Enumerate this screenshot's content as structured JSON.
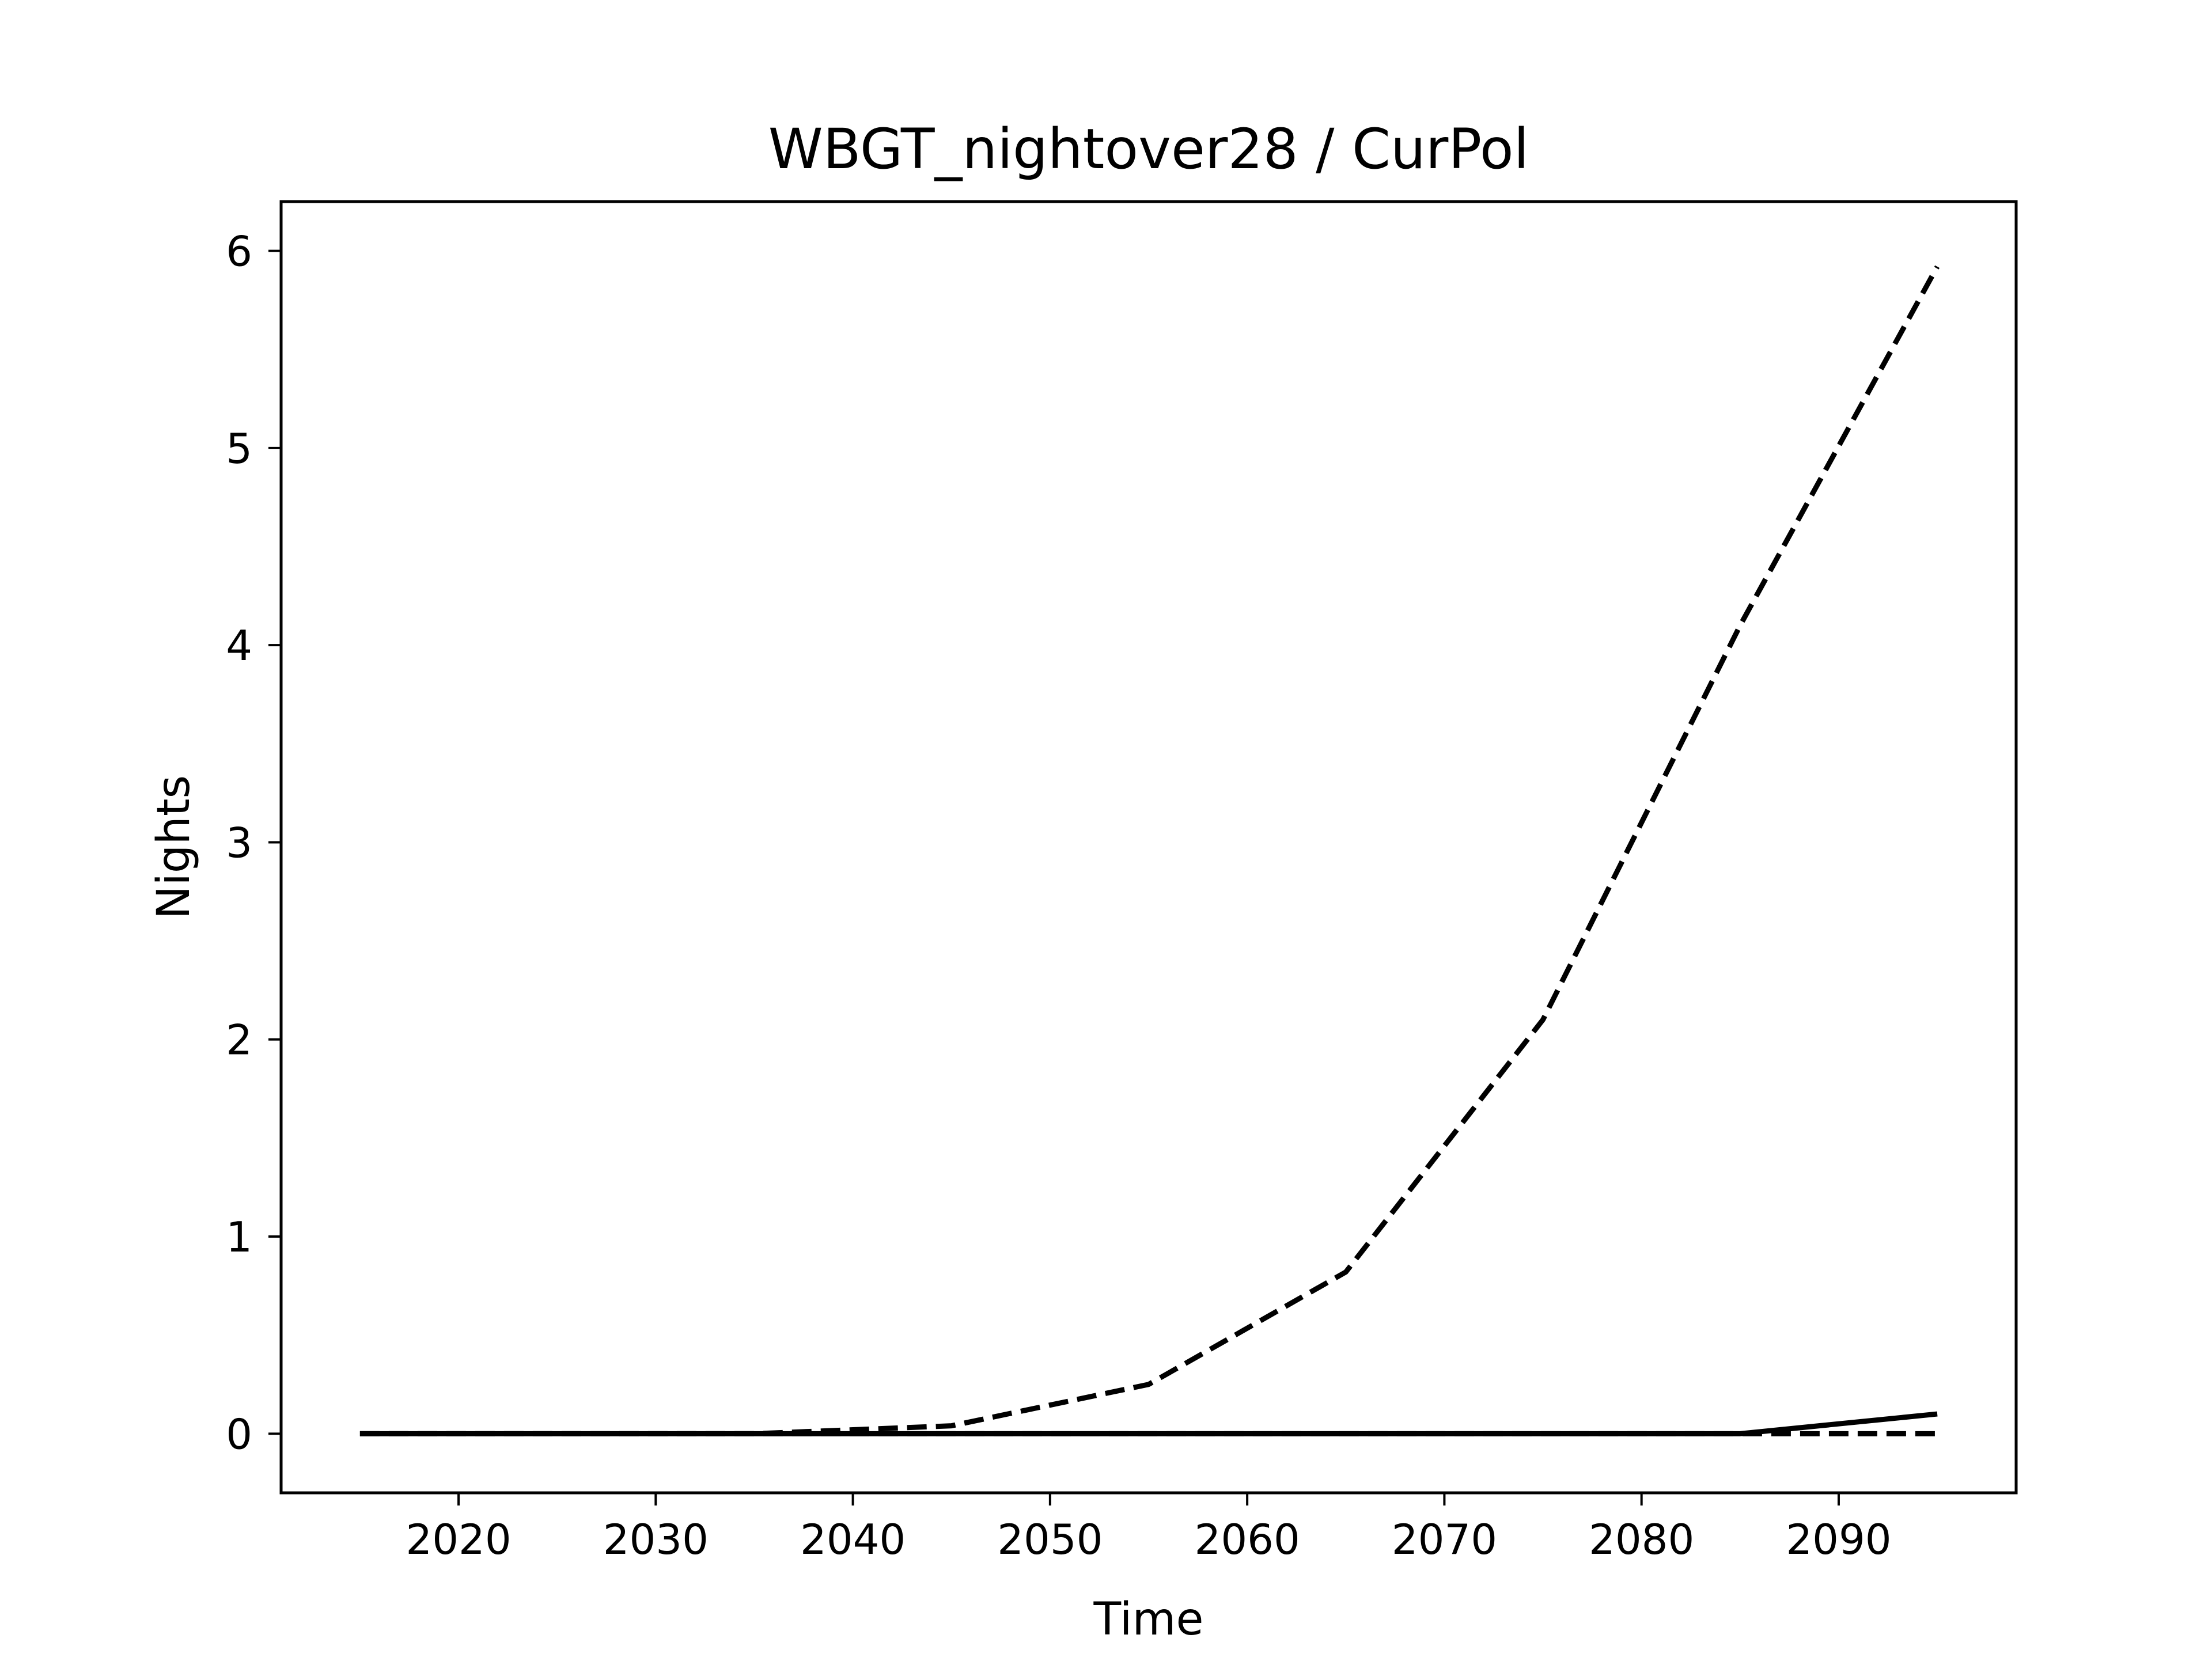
{
  "chart_data": {
    "type": "line",
    "title": "WBGT_nightover28 / CurPol",
    "xlabel": "Time",
    "ylabel": "Nights",
    "x": [
      2015,
      2025,
      2035,
      2045,
      2055,
      2065,
      2075,
      2085,
      2095
    ],
    "xlim": [
      2011,
      2099
    ],
    "ylim": [
      -0.3,
      6.25
    ],
    "xticks": [
      2020,
      2030,
      2040,
      2050,
      2060,
      2070,
      2080,
      2090
    ],
    "yticks": [
      0,
      1,
      2,
      3,
      4,
      5,
      6
    ],
    "grid": false,
    "series": [
      {
        "style": "dashed",
        "color": "#000000",
        "values": [
          0,
          0,
          0,
          0.04,
          0.25,
          0.82,
          2.1,
          4.1,
          5.92
        ]
      },
      {
        "style": "dashed",
        "color": "#000000",
        "values": [
          0,
          0,
          0,
          0,
          0,
          0,
          0,
          0,
          0
        ]
      },
      {
        "style": "solid",
        "color": "#000000",
        "values": [
          0,
          0,
          0,
          0,
          0,
          0,
          0,
          0,
          0.1
        ]
      }
    ]
  }
}
